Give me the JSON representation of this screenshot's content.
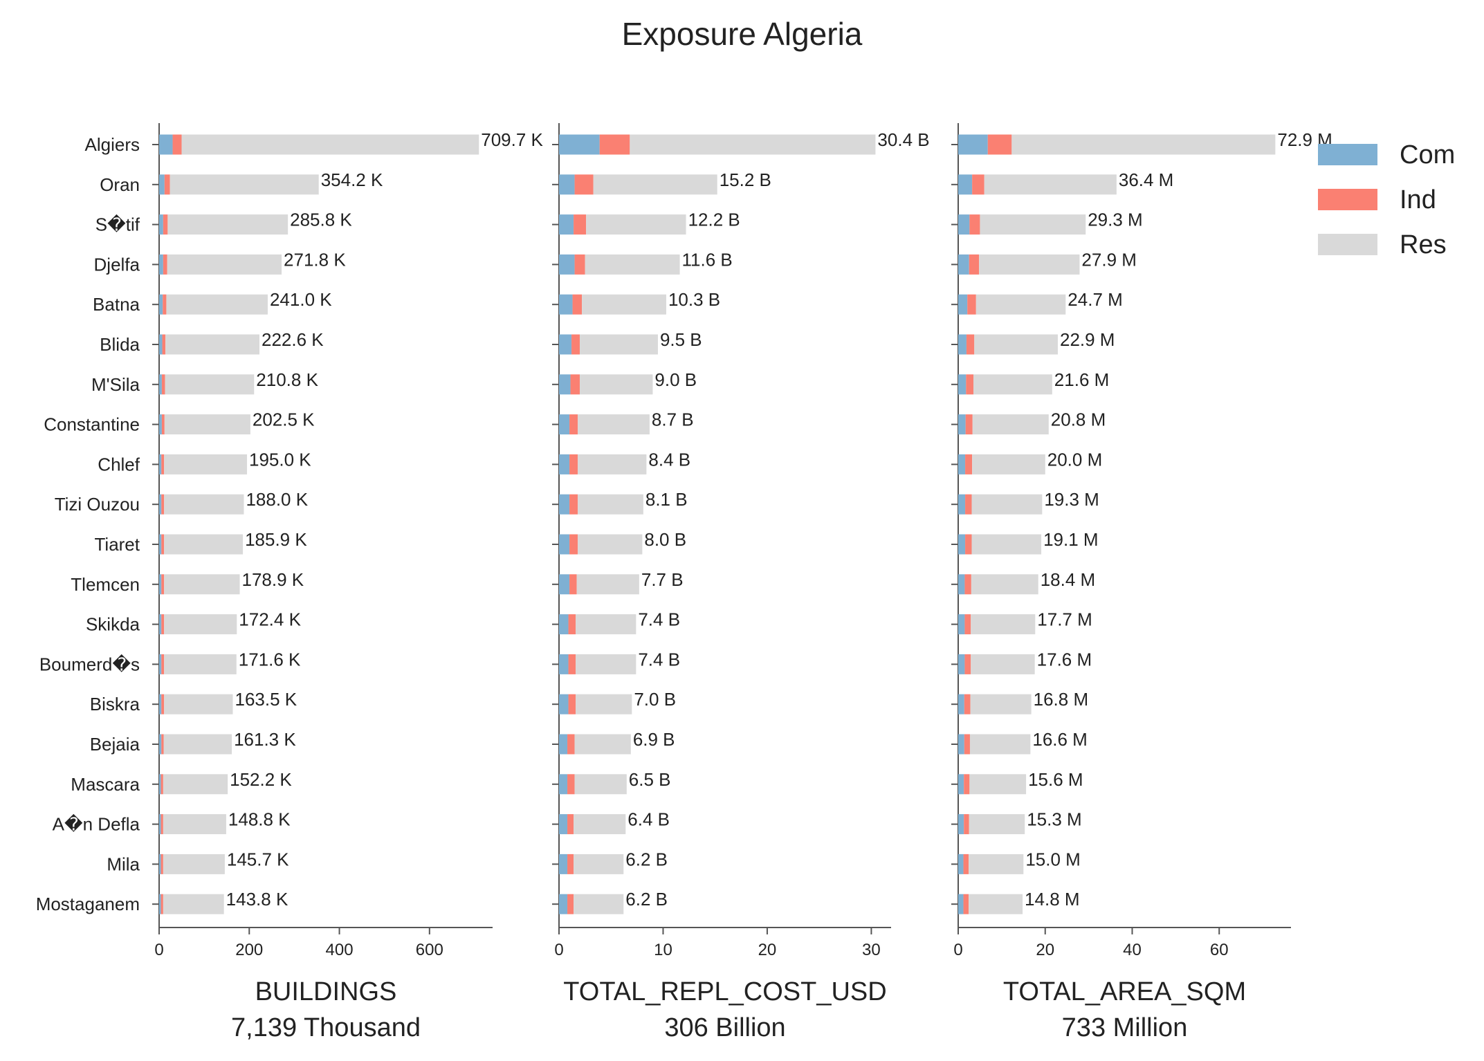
{
  "chart_data": {
    "type": "bar",
    "orientation": "horizontal",
    "stacked": true,
    "title": "Exposure Algeria",
    "categories": [
      "Algiers",
      "Oran",
      "S�tif",
      "Djelfa",
      "Batna",
      "Blida",
      "M'Sila",
      "Constantine",
      "Chlef",
      "Tizi Ouzou",
      "Tiaret",
      "Tlemcen",
      "Skikda",
      "Boumerd�s",
      "Biskra",
      "Bejaia",
      "Mascara",
      "A�n Defla",
      "Mila",
      "Mostaganem"
    ],
    "legend": {
      "placement": "top-right",
      "entries": [
        {
          "name": "Com",
          "color": "#7fb0d3"
        },
        {
          "name": "Ind",
          "color": "#fa8072"
        },
        {
          "name": "Res",
          "color": "#d9d9d9"
        }
      ]
    },
    "panels": [
      {
        "xlabel": "BUILDINGS",
        "xlabel_total": "7,139 Thousand",
        "xlim": [
          0,
          740
        ],
        "xticks": [
          0,
          200,
          400,
          600
        ],
        "com": [
          30,
          12,
          9,
          9,
          8,
          7,
          6,
          6,
          5,
          5,
          5,
          5,
          5,
          5,
          5,
          5,
          4,
          4,
          4,
          4
        ],
        "ind": [
          20,
          12,
          10,
          9,
          8,
          7,
          7,
          6,
          6,
          6,
          6,
          6,
          6,
          6,
          6,
          5,
          5,
          5,
          5,
          5
        ],
        "totals": [
          709.7,
          354.2,
          285.8,
          271.8,
          241.0,
          222.6,
          210.8,
          202.5,
          195.0,
          188.0,
          185.9,
          178.9,
          172.4,
          171.6,
          163.5,
          161.3,
          152.2,
          148.8,
          145.7,
          143.8
        ],
        "total_labels": [
          "709.7 K",
          "354.2 K",
          "285.8 K",
          "271.8 K",
          "241.0 K",
          "222.6 K",
          "210.8 K",
          "202.5 K",
          "195.0 K",
          "188.0 K",
          "185.9 K",
          "178.9 K",
          "172.4 K",
          "171.6 K",
          "163.5 K",
          "161.3 K",
          "152.2 K",
          "148.8 K",
          "145.7 K",
          "143.8 K"
        ]
      },
      {
        "xlabel": "TOTAL_REPL_COST_USD",
        "xlabel_total": "306 Billion",
        "xlim": [
          0,
          31.9
        ],
        "xticks": [
          0,
          10,
          20,
          30
        ],
        "com": [
          3.9,
          1.5,
          1.4,
          1.5,
          1.3,
          1.2,
          1.1,
          1.0,
          1.0,
          1.0,
          1.0,
          1.0,
          0.9,
          0.9,
          0.9,
          0.8,
          0.8,
          0.8,
          0.8,
          0.8
        ],
        "ind": [
          2.9,
          1.8,
          1.2,
          1.0,
          0.9,
          0.8,
          0.9,
          0.8,
          0.8,
          0.8,
          0.8,
          0.7,
          0.7,
          0.7,
          0.7,
          0.7,
          0.7,
          0.6,
          0.6,
          0.6
        ],
        "totals": [
          30.4,
          15.2,
          12.2,
          11.6,
          10.3,
          9.5,
          9.0,
          8.7,
          8.4,
          8.1,
          8.0,
          7.7,
          7.4,
          7.4,
          7.0,
          6.9,
          6.5,
          6.4,
          6.2,
          6.2
        ],
        "total_labels": [
          "30.4 B",
          "15.2 B",
          "12.2 B",
          "11.6 B",
          "10.3 B",
          "9.5 B",
          "9.0 B",
          "8.7 B",
          "8.4 B",
          "8.1 B",
          "8.0 B",
          "7.7 B",
          "7.4 B",
          "7.4 B",
          "7.0 B",
          "6.9 B",
          "6.5 B",
          "6.4 B",
          "6.2 B",
          "6.2 B"
        ]
      },
      {
        "xlabel": "TOTAL_AREA_SQM",
        "xlabel_total": "733 Million",
        "xlim": [
          0,
          76.5
        ],
        "xticks": [
          0,
          20,
          40,
          60
        ],
        "com": [
          6.8,
          3.2,
          2.6,
          2.5,
          2.1,
          1.9,
          1.8,
          1.7,
          1.6,
          1.6,
          1.6,
          1.5,
          1.5,
          1.5,
          1.4,
          1.4,
          1.3,
          1.3,
          1.2,
          1.2
        ],
        "ind": [
          5.5,
          2.8,
          2.4,
          2.3,
          2.0,
          1.8,
          1.7,
          1.6,
          1.6,
          1.5,
          1.5,
          1.5,
          1.4,
          1.4,
          1.4,
          1.3,
          1.3,
          1.2,
          1.2,
          1.2
        ],
        "totals": [
          72.9,
          36.4,
          29.3,
          27.9,
          24.7,
          22.9,
          21.6,
          20.8,
          20.0,
          19.3,
          19.1,
          18.4,
          17.7,
          17.6,
          16.8,
          16.6,
          15.6,
          15.3,
          15.0,
          14.8
        ],
        "total_labels": [
          "72.9 M",
          "36.4 M",
          "29.3 M",
          "27.9 M",
          "24.7 M",
          "22.9 M",
          "21.6 M",
          "20.8 M",
          "20.0 M",
          "19.3 M",
          "19.1 M",
          "18.4 M",
          "17.7 M",
          "17.6 M",
          "16.8 M",
          "16.6 M",
          "15.6 M",
          "15.3 M",
          "15.0 M",
          "14.8 M"
        ]
      }
    ]
  }
}
